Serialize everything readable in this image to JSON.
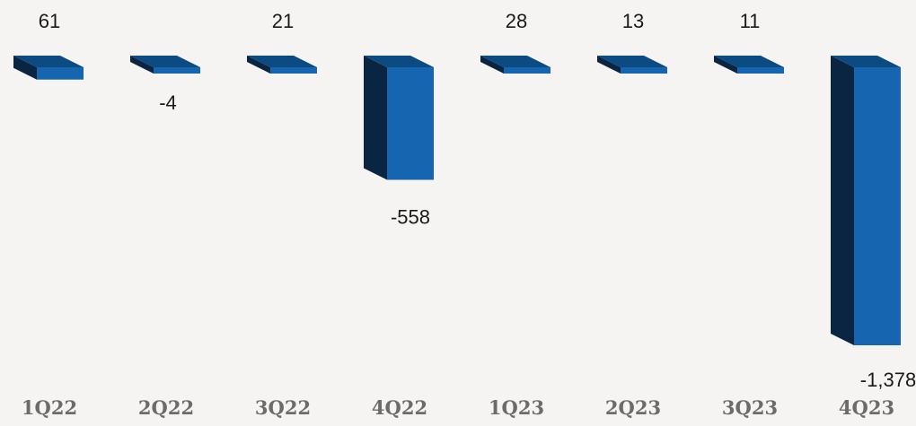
{
  "chart_data": {
    "type": "bar",
    "style": "3d-column",
    "categories": [
      "1Q22",
      "2Q22",
      "3Q22",
      "4Q22",
      "1Q23",
      "2Q23",
      "3Q23",
      "4Q23"
    ],
    "values": [
      61,
      -4,
      21,
      -558,
      28,
      13,
      11,
      -1378
    ],
    "value_labels": [
      "61",
      "-4",
      "21",
      "-558",
      "28",
      "13",
      "11",
      "-1,378"
    ],
    "title": "",
    "xlabel": "",
    "ylabel": "",
    "grid": false,
    "legend": "none",
    "colors": {
      "front": "#1565b0",
      "side": "#0a2542",
      "top": "#0c4a82",
      "background": "#f6f4f2",
      "value_label": "#1a1a1a",
      "category_label": "#6b6b6b"
    }
  }
}
